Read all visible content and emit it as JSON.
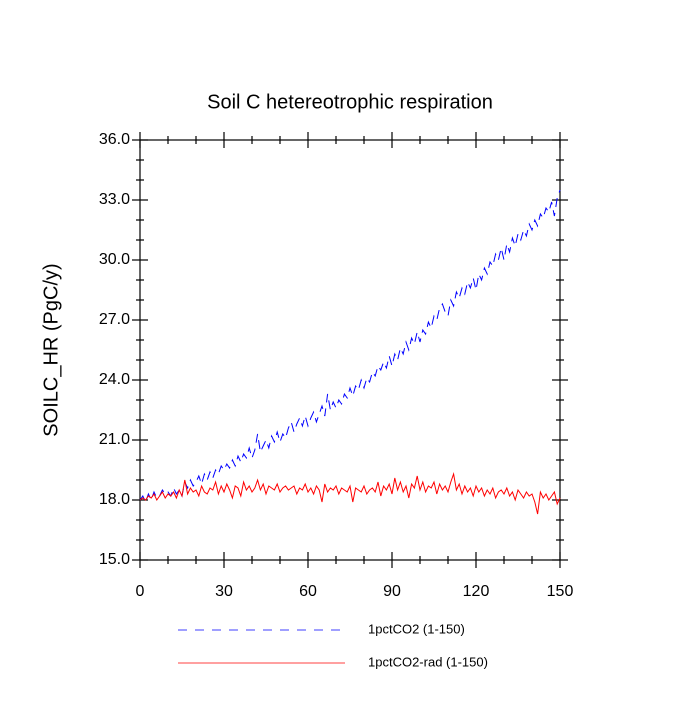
{
  "chart_data": {
    "type": "line",
    "title": "Soil C hetereotrophic respiration",
    "y_label": "SOILC_HR  (PgC/y)",
    "x": [
      0,
      1,
      2,
      3,
      4,
      5,
      6,
      7,
      8,
      9,
      10,
      11,
      12,
      13,
      14,
      15,
      16,
      17,
      18,
      19,
      20,
      21,
      22,
      23,
      24,
      25,
      26,
      27,
      28,
      29,
      30,
      31,
      32,
      33,
      34,
      35,
      36,
      37,
      38,
      39,
      40,
      41,
      42,
      43,
      44,
      45,
      46,
      47,
      48,
      49,
      50,
      51,
      52,
      53,
      54,
      55,
      56,
      57,
      58,
      59,
      60,
      61,
      62,
      63,
      64,
      65,
      66,
      67,
      68,
      69,
      70,
      71,
      72,
      73,
      74,
      75,
      76,
      77,
      78,
      79,
      80,
      81,
      82,
      83,
      84,
      85,
      86,
      87,
      88,
      89,
      90,
      91,
      92,
      93,
      94,
      95,
      96,
      97,
      98,
      99,
      100,
      101,
      102,
      103,
      104,
      105,
      106,
      107,
      108,
      109,
      110,
      111,
      112,
      113,
      114,
      115,
      116,
      117,
      118,
      119,
      120,
      121,
      122,
      123,
      124,
      125,
      126,
      127,
      128,
      129,
      130,
      131,
      132,
      133,
      134,
      135,
      136,
      137,
      138,
      139,
      140,
      141,
      142,
      143,
      144,
      145,
      146,
      147,
      148,
      149,
      150
    ],
    "series": [
      {
        "name": "1pctCO2 (1-150)",
        "color": "#0000ff",
        "dash": true,
        "values": [
          18.0,
          18.2,
          17.9,
          18.3,
          18.0,
          18.4,
          18.1,
          18.2,
          18.5,
          18.3,
          18.4,
          18.2,
          18.6,
          18.3,
          18.5,
          18.2,
          18.9,
          18.6,
          19.0,
          18.7,
          18.9,
          19.2,
          18.8,
          19.3,
          19.0,
          19.4,
          19.1,
          19.5,
          19.3,
          19.7,
          19.5,
          19.8,
          19.6,
          20.0,
          19.7,
          20.2,
          19.9,
          20.3,
          20.1,
          20.6,
          20.1,
          20.5,
          21.3,
          20.4,
          20.7,
          21.0,
          20.6,
          21.2,
          20.9,
          21.4,
          20.9,
          21.3,
          21.1,
          21.6,
          21.9,
          21.4,
          21.8,
          22.1,
          21.7,
          22.2,
          21.7,
          22.1,
          22.4,
          21.9,
          22.3,
          22.7,
          22.2,
          23.3,
          22.5,
          22.9,
          22.6,
          23.0,
          22.8,
          23.3,
          23.1,
          23.6,
          23.2,
          23.7,
          23.5,
          24.0,
          23.6,
          24.1,
          23.9,
          24.4,
          24.2,
          24.7,
          24.5,
          24.9,
          24.6,
          25.2,
          24.7,
          25.3,
          25.0,
          25.6,
          25.3,
          25.9,
          25.5,
          26.1,
          25.8,
          26.4,
          25.9,
          26.5,
          26.3,
          26.9,
          26.6,
          27.2,
          27.0,
          27.6,
          27.8,
          27.4,
          27.2,
          28.0,
          27.7,
          28.4,
          28.1,
          28.6,
          28.3,
          28.9,
          28.6,
          29.1,
          28.5,
          29.3,
          29.0,
          29.6,
          29.3,
          29.9,
          29.7,
          30.3,
          30.0,
          30.6,
          30.0,
          30.8,
          30.4,
          31.1,
          30.7,
          31.3,
          31.0,
          31.5,
          31.2,
          31.8,
          31.5,
          32.0,
          31.7,
          32.3,
          32.1,
          32.6,
          32.4,
          32.9,
          32.2,
          33.1,
          33.5
        ]
      },
      {
        "name": "1pctCO2-rad (1-150)",
        "color": "#ff0000",
        "dash": false,
        "values": [
          18.0,
          18.1,
          18.0,
          18.2,
          18.1,
          18.3,
          18.0,
          18.2,
          18.4,
          18.1,
          18.3,
          18.2,
          18.4,
          18.1,
          18.5,
          18.2,
          19.0,
          18.3,
          18.6,
          18.4,
          18.5,
          18.2,
          18.7,
          18.4,
          18.3,
          18.6,
          18.5,
          18.9,
          18.3,
          18.7,
          18.4,
          18.8,
          18.5,
          18.1,
          18.7,
          18.6,
          18.2,
          18.9,
          18.5,
          18.7,
          18.4,
          18.6,
          19.0,
          18.5,
          18.8,
          18.3,
          18.7,
          18.6,
          18.5,
          18.8,
          18.4,
          18.6,
          18.7,
          18.5,
          18.6,
          18.7,
          18.3,
          18.6,
          18.5,
          18.8,
          18.4,
          18.6,
          18.3,
          18.7,
          18.5,
          17.9,
          18.8,
          18.4,
          18.6,
          18.5,
          18.7,
          18.3,
          18.6,
          18.5,
          18.4,
          18.7,
          17.9,
          18.6,
          18.5,
          18.4,
          18.7,
          18.3,
          18.5,
          18.6,
          18.4,
          18.9,
          18.2,
          18.7,
          18.5,
          18.8,
          18.3,
          19.1,
          18.5,
          18.9,
          18.4,
          18.7,
          18.1,
          18.8,
          18.6,
          19.2,
          18.5,
          18.9,
          18.4,
          18.7,
          18.6,
          18.9,
          18.3,
          18.8,
          18.5,
          18.7,
          18.4,
          18.9,
          19.3,
          18.5,
          18.8,
          18.3,
          18.7,
          18.4,
          18.6,
          18.2,
          18.7,
          18.4,
          18.6,
          18.2,
          18.5,
          18.3,
          18.6,
          18.1,
          18.4,
          18.5,
          18.3,
          18.6,
          18.2,
          18.4,
          18.0,
          18.5,
          18.3,
          18.1,
          18.4,
          18.2,
          18.3,
          17.9,
          17.3,
          18.4,
          18.1,
          18.3,
          18.0,
          18.2,
          18.4,
          17.8,
          18.1
        ]
      }
    ],
    "xlim": [
      0,
      150
    ],
    "xticks": [
      0,
      30,
      60,
      90,
      120,
      150
    ],
    "xminorticks": [
      10,
      20,
      40,
      50,
      70,
      80,
      100,
      110,
      130,
      140
    ],
    "ylim": [
      15,
      36
    ],
    "yticks": [
      {
        "value": 15,
        "label": "15.0"
      },
      {
        "value": 18,
        "label": "18.0"
      },
      {
        "value": 21,
        "label": "21.0"
      },
      {
        "value": 24,
        "label": "24.0"
      },
      {
        "value": 27,
        "label": "27.0"
      },
      {
        "value": 30,
        "label": "30.0"
      },
      {
        "value": 33,
        "label": "33.0"
      },
      {
        "value": 36,
        "label": "36.0"
      }
    ],
    "yminorticks": [
      16,
      17,
      19,
      20,
      22,
      23,
      25,
      26,
      28,
      29,
      31,
      32,
      34,
      35
    ],
    "grid": false,
    "legend": "bottom"
  }
}
